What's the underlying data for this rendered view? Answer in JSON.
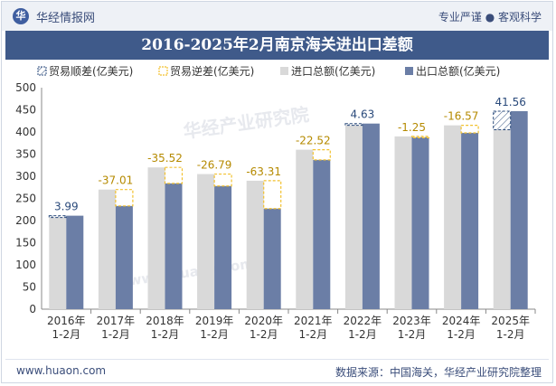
{
  "header": {
    "logo_glyph": "华",
    "brand": "华经情报网",
    "tagline": "专业严谨 ● 客观科学"
  },
  "footer": {
    "website": "www.huaon.com",
    "source": "数据来源：中国海关，华经产业研究院整理"
  },
  "watermark": {
    "text1": "华经产业研究院",
    "text2": "www.huaon.com"
  },
  "colors": {
    "import": "#d9d9d9",
    "export": "#6b7ea6",
    "surplus": "#2a4a7b",
    "deficit": "#f2c12e",
    "title_band": "#3f5a8a"
  },
  "chart_data": {
    "type": "bar",
    "title": "2016-2025年2月南京海关进出口差额",
    "categories": [
      "2016年\n1-2月",
      "2017年\n1-2月",
      "2018年\n1-2月",
      "2019年\n1-2月",
      "2020年\n1-2月",
      "2021年\n1-2月",
      "2022年\n1-2月",
      "2023年\n1-2月",
      "2024年\n1-2月",
      "2025年\n1-2月"
    ],
    "ylim": [
      0,
      500
    ],
    "yticks": [
      0,
      50,
      100,
      150,
      200,
      250,
      300,
      350,
      400,
      450,
      500
    ],
    "legend_position": "top",
    "legend": [
      "贸易顺差(亿美元)",
      "贸易逆差(亿美元)",
      "进口总额(亿美元)",
      "出口总额(亿美元)"
    ],
    "series": [
      {
        "name": "进口总额(亿美元)",
        "values": [
          207,
          270,
          320,
          305,
          290,
          360,
          415,
          390,
          415,
          405
        ]
      },
      {
        "name": "出口总额(亿美元)",
        "values": [
          211,
          233,
          284,
          278,
          227,
          337,
          419,
          388,
          398,
          447
        ]
      }
    ],
    "balance": [
      {
        "label": "3.99",
        "value": 3.99
      },
      {
        "label": "-37.01",
        "value": -37.01
      },
      {
        "label": "-35.52",
        "value": -35.52
      },
      {
        "label": "-26.79",
        "value": -26.79
      },
      {
        "label": "-63.31",
        "value": -63.31
      },
      {
        "label": "-22.52",
        "value": -22.52
      },
      {
        "label": "4.63",
        "value": 4.63
      },
      {
        "label": "-1.25",
        "value": -1.25
      },
      {
        "label": "-16.57",
        "value": -16.57
      },
      {
        "label": "41.56",
        "value": 41.56
      }
    ]
  }
}
